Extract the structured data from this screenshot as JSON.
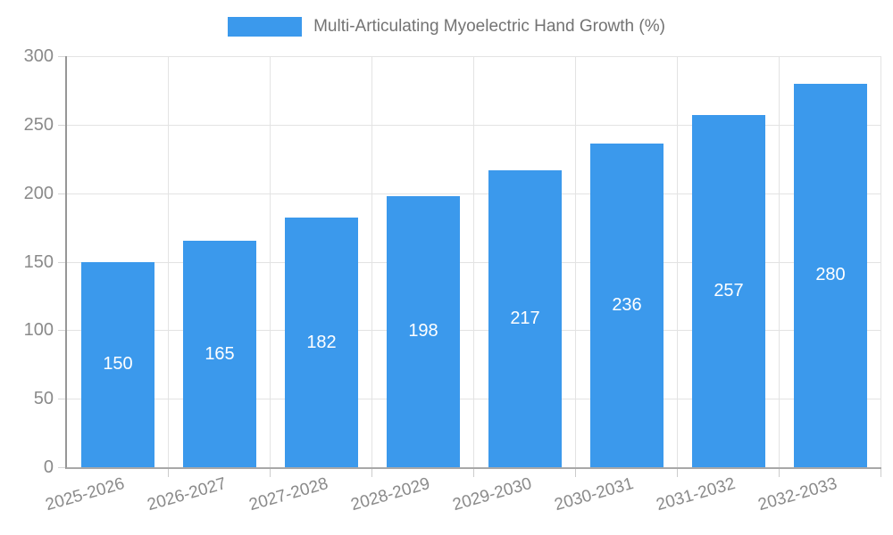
{
  "legend": {
    "label": "Multi-Articulating Myoelectric Hand Growth (%)"
  },
  "colors": {
    "bar": "#3b99ec",
    "value_label": "#ffffff",
    "axis_text": "#8a8a8a",
    "legend_text": "#737373",
    "gridline": "#e3e3e3"
  },
  "chart_data": {
    "type": "bar",
    "title": "Multi-Articulating Myoelectric Hand Growth (%)",
    "series_name": "Multi-Articulating Myoelectric Hand Growth (%)",
    "categories": [
      "2025-2026",
      "2026-2027",
      "2027-2028",
      "2028-2029",
      "2029-2030",
      "2030-2031",
      "2031-2032",
      "2032-2033"
    ],
    "values": [
      150,
      165,
      182,
      198,
      217,
      236,
      257,
      280
    ],
    "xlabel": "",
    "ylabel": "",
    "ylim": [
      0,
      300
    ],
    "yticks": [
      0,
      50,
      100,
      150,
      200,
      250,
      300
    ],
    "grid": true,
    "legend_position": "top",
    "value_labels": "centered-inside-bars",
    "x_label_rotation_deg": -16
  }
}
